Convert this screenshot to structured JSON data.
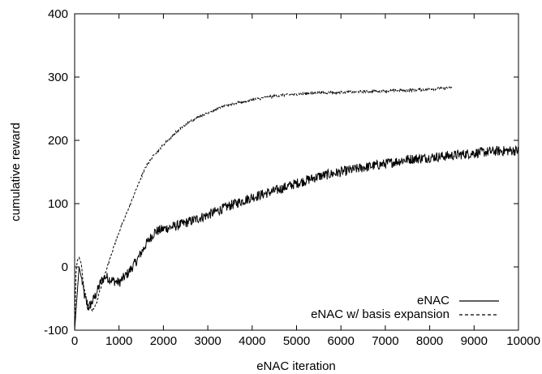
{
  "chart_data": {
    "type": "line",
    "title": "",
    "xlabel": "eNAC iteration",
    "ylabel": "cumulative reward",
    "xlim": [
      0,
      10000
    ],
    "ylim": [
      -100,
      400
    ],
    "xticks": [
      0,
      1000,
      2000,
      3000,
      4000,
      5000,
      6000,
      7000,
      8000,
      9000,
      10000
    ],
    "yticks": [
      -100,
      0,
      100,
      200,
      300,
      400
    ],
    "xtick_labels": [
      "0",
      "1000",
      "2000",
      "3000",
      "4000",
      "5000",
      "6000",
      "7000",
      "8000",
      "9000",
      "10000"
    ],
    "ytick_labels": [
      "-100",
      "0",
      "100",
      "200",
      "300",
      "400"
    ],
    "grid": false,
    "legend_position": "bottom-right",
    "series": [
      {
        "name": "eNAC",
        "style": "solid",
        "color": "#000000",
        "noise": 8,
        "x": [
          0,
          60,
          100,
          160,
          220,
          300,
          400,
          500,
          600,
          700,
          800,
          1000,
          1200,
          1400,
          1600,
          1800,
          2000,
          2300,
          2600,
          3000,
          3500,
          4000,
          4500,
          5000,
          5500,
          6000,
          6500,
          7000,
          7500,
          8000,
          8500,
          9000,
          9500,
          10000
        ],
        "y": [
          -100,
          -40,
          0,
          -20,
          -45,
          -65,
          -55,
          -40,
          -22,
          -15,
          -20,
          -25,
          -10,
          10,
          35,
          55,
          60,
          65,
          72,
          82,
          97,
          110,
          120,
          132,
          143,
          150,
          157,
          163,
          170,
          173,
          176,
          180,
          183,
          184
        ]
      },
      {
        "name": "eNAC w/ basis expansion",
        "style": "dashed",
        "color": "#000000",
        "noise": 2,
        "x": [
          0,
          30,
          60,
          100,
          150,
          200,
          300,
          400,
          500,
          600,
          800,
          1000,
          1200,
          1400,
          1600,
          1800,
          2000,
          2300,
          2600,
          3000,
          3500,
          4000,
          4500,
          5000,
          5500,
          6000,
          6500,
          7000,
          7500,
          8000,
          8500
        ],
        "y": [
          -100,
          -10,
          10,
          15,
          5,
          -30,
          -60,
          -70,
          -55,
          -30,
          15,
          55,
          90,
          125,
          158,
          178,
          193,
          214,
          230,
          244,
          257,
          264,
          270,
          273,
          275,
          276,
          277,
          278,
          279,
          281,
          283
        ]
      }
    ]
  }
}
